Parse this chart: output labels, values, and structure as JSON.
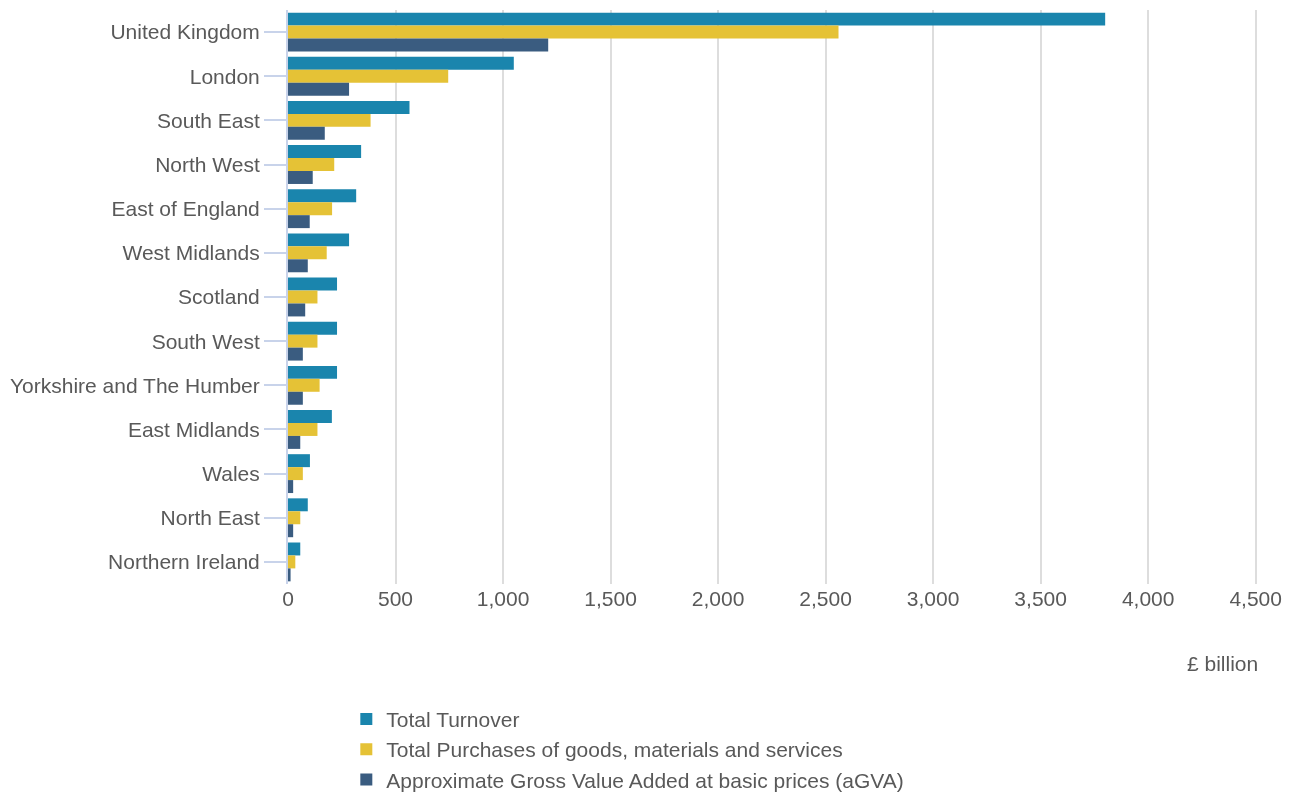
{
  "chart_data": {
    "type": "bar",
    "orientation": "horizontal",
    "xlabel": "£ billion",
    "categories": [
      "United Kingdom",
      "London",
      "South East",
      "North West",
      "East of England",
      "West Midlands",
      "Scotland",
      "South West",
      "Yorkshire and The Humber",
      "East Midlands",
      "Wales",
      "North East",
      "Northern Ireland"
    ],
    "series": [
      {
        "name": "Total Turnover",
        "color": "#1a85ad",
        "values": [
          3800,
          1050,
          565,
          340,
          317,
          284,
          228,
          228,
          228,
          204,
          102,
          92,
          57
        ]
      },
      {
        "name": "Total Purchases of goods, materials and services",
        "color": "#e5c236",
        "values": [
          2560,
          745,
          384,
          215,
          205,
          180,
          137,
          137,
          147,
          137,
          69,
          57,
          34
        ]
      },
      {
        "name": "Approximate Gross Value Added at basic prices (aGVA)",
        "color": "#3a5c80",
        "values": [
          1210,
          284,
          171,
          115,
          101,
          92,
          80,
          69,
          69,
          57,
          24,
          24,
          12
        ]
      }
    ],
    "xlim": [
      0,
      4520
    ],
    "xticks": [
      0,
      {
        "value": 500,
        "label": "500"
      },
      {
        "value": 1000,
        "label": "1,000"
      },
      {
        "value": 1500,
        "label": "1,500"
      },
      {
        "value": 2000,
        "label": "2,000"
      },
      {
        "value": 2500,
        "label": "2,500"
      },
      {
        "value": 3000,
        "label": "3,000"
      },
      {
        "value": 3500,
        "label": "3,500"
      },
      {
        "value": 4000,
        "label": "4,000"
      },
      {
        "value": 4500,
        "label": "4,500"
      }
    ],
    "grid": "x",
    "legend": "bottom"
  }
}
